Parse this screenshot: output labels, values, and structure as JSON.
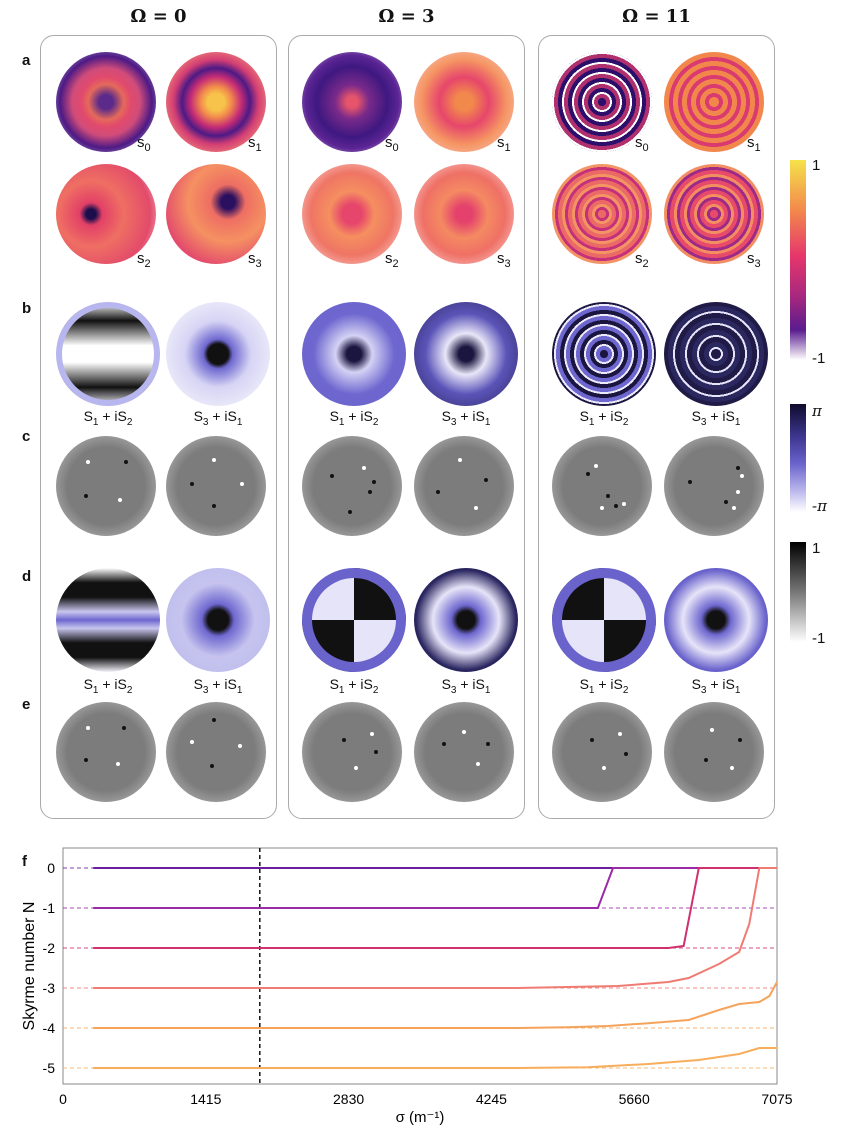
{
  "columns": [
    {
      "title": "Ω = 0"
    },
    {
      "title": "Ω = 3"
    },
    {
      "title": "Ω = 11"
    }
  ],
  "row_labels": [
    "a",
    "b",
    "c",
    "d",
    "e",
    "f"
  ],
  "stokes_labels": {
    "s0": "s",
    "s1": "s",
    "s2": "s",
    "s3": "s",
    "sub0": "0",
    "sub1": "1",
    "sub2": "2",
    "sub3": "3"
  },
  "complex_labels": {
    "left_a": "S",
    "left_sub_a": "1",
    "left_mid": " + iS",
    "left_sub_b": "2",
    "right_a": "S",
    "right_sub_a": "3",
    "right_mid": " + iS",
    "right_sub_b": "1"
  },
  "colorbars": {
    "stokes": {
      "max": "1",
      "min": "-1"
    },
    "phase": {
      "max": "π",
      "min": "-π"
    },
    "gray": {
      "max": "1",
      "min": "-1"
    }
  },
  "colors": {
    "plasma_top": "#f5e24a",
    "plasma_mid": "#e6366b",
    "plasma_low": "#5a1c8f",
    "phase_dark": "#0f0b2c",
    "phase_mid": "#6a63cc",
    "line_0": "#6b1fa0",
    "line_1": "#9a2aa8",
    "line_2": "#d0306d",
    "line_3": "#ef7b72",
    "line_4": "#f5a35a",
    "line_5": "#f7ad5c"
  },
  "chart_data": {
    "type": "line",
    "title": "",
    "xlabel": "σ (m⁻¹)",
    "ylabel": "Skyrme number N",
    "xticks": [
      "0",
      "1415",
      "2830",
      "4245",
      "5660",
      "7075"
    ],
    "yticks": [
      "0",
      "-1",
      "-2",
      "-3",
      "-4",
      "-5"
    ],
    "xlim": [
      0,
      7075
    ],
    "ylim": [
      -5.4,
      0.5
    ],
    "vline_x": 1950,
    "reference_levels": [
      0,
      -1,
      -2,
      -3,
      -4,
      -5
    ],
    "series": [
      {
        "name": "N=0",
        "x": [
          300,
          7075
        ],
        "y": [
          0,
          0
        ]
      },
      {
        "name": "N=-1",
        "x": [
          300,
          5300,
          5450,
          7075
        ],
        "y": [
          -1,
          -1,
          0,
          0
        ]
      },
      {
        "name": "N=-2",
        "x": [
          300,
          6000,
          6150,
          6300,
          7075
        ],
        "y": [
          -2,
          -2,
          -1.95,
          0,
          0
        ]
      },
      {
        "name": "N=-3",
        "x": [
          300,
          4500,
          5500,
          6000,
          6200,
          6500,
          6700,
          6800,
          6900,
          7075
        ],
        "y": [
          -3,
          -3,
          -2.95,
          -2.85,
          -2.75,
          -2.4,
          -2.1,
          -1.4,
          0,
          0
        ]
      },
      {
        "name": "N=-4",
        "x": [
          300,
          4500,
          5000,
          5400,
          5800,
          6200,
          6500,
          6700,
          6900,
          7000,
          7075
        ],
        "y": [
          -4,
          -4,
          -3.98,
          -3.95,
          -3.88,
          -3.8,
          -3.55,
          -3.4,
          -3.35,
          -3.2,
          -2.85
        ]
      },
      {
        "name": "N=-5",
        "x": [
          300,
          4500,
          5200,
          5800,
          6300,
          6700,
          6900,
          7075
        ],
        "y": [
          -5,
          -5,
          -4.98,
          -4.9,
          -4.8,
          -4.65,
          -4.5,
          -4.5
        ]
      }
    ]
  }
}
